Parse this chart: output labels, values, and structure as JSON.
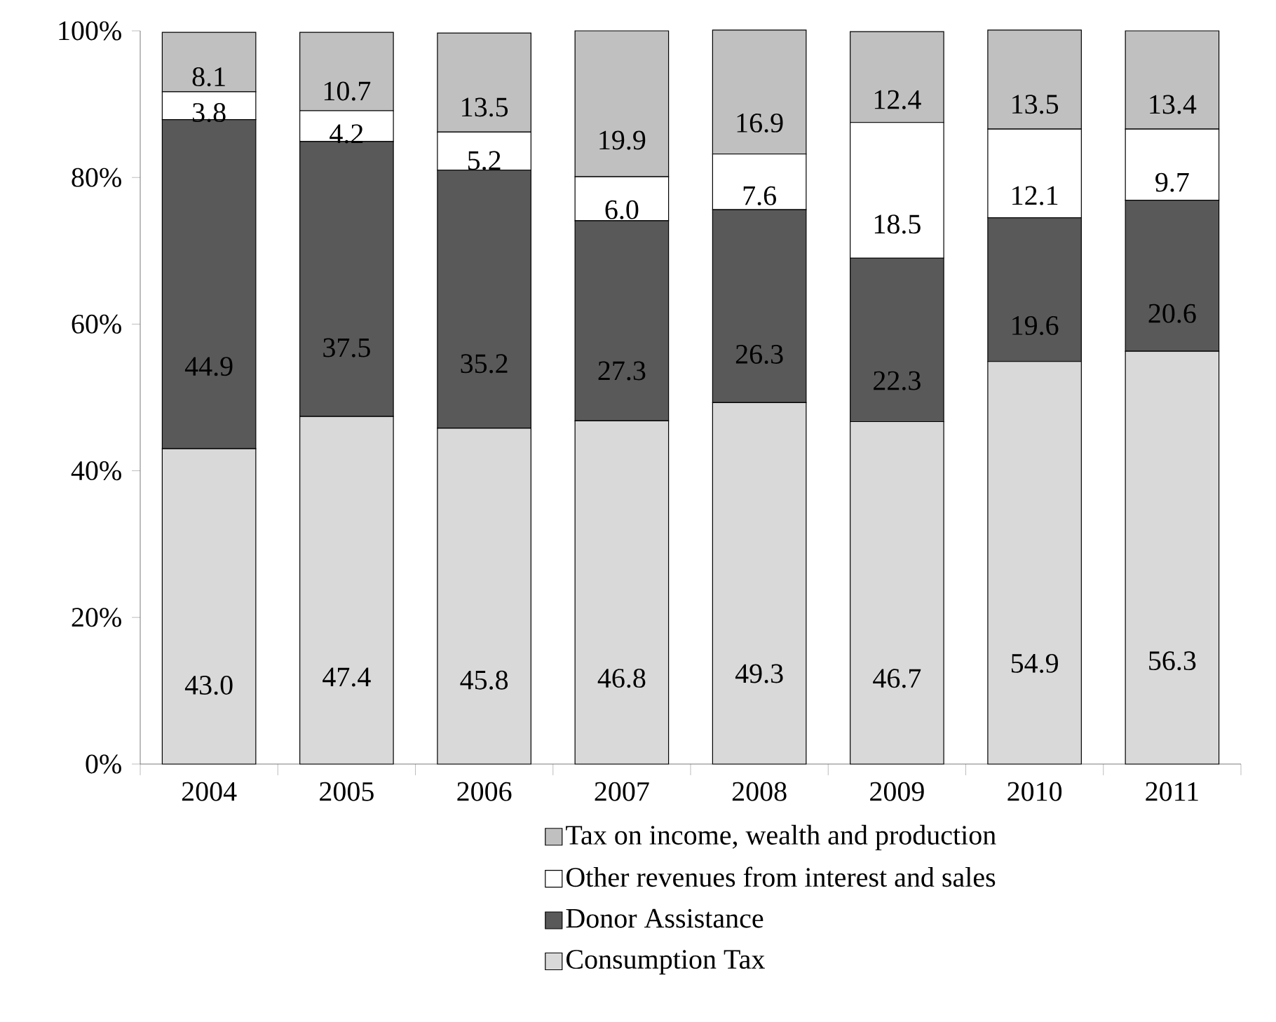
{
  "chart_data": {
    "type": "bar",
    "stacked": true,
    "legend": "bottom",
    "grid": false,
    "categories": [
      "2004",
      "2005",
      "2006",
      "2007",
      "2008",
      "2009",
      "2010",
      "2011"
    ],
    "ylim": [
      0,
      100
    ],
    "yticks": [
      {
        "value": 0,
        "label": "0%"
      },
      {
        "value": 20,
        "label": "20%"
      },
      {
        "value": 40,
        "label": "40%"
      },
      {
        "value": 60,
        "label": "60%"
      },
      {
        "value": 80,
        "label": "80%"
      },
      {
        "value": 100,
        "label": "100%"
      }
    ],
    "series": [
      {
        "name": "Consumption Tax",
        "color": "#d9d9d9",
        "values": [
          43.0,
          47.4,
          45.8,
          46.8,
          49.3,
          46.7,
          54.9,
          56.3
        ],
        "value_labels": [
          "43.0",
          "47.4",
          "45.8",
          "46.8",
          "49.3",
          "46.7",
          "54.9",
          "56.3"
        ]
      },
      {
        "name": "Donor Assistance",
        "color": "#595959",
        "values": [
          44.9,
          37.5,
          35.2,
          27.3,
          26.3,
          22.3,
          19.6,
          20.6
        ],
        "value_labels": [
          "44.9",
          "37.5",
          "35.2",
          "27.3",
          "26.3",
          "22.3",
          "19.6",
          "20.6"
        ]
      },
      {
        "name": "Other revenues from interest and sales",
        "color": "#ffffff",
        "values": [
          3.8,
          4.2,
          5.2,
          6.0,
          7.6,
          18.5,
          12.1,
          9.7
        ],
        "value_labels": [
          "3.8",
          "4.2",
          "5.2",
          "6.0",
          "7.6",
          "18.5",
          "12.1",
          "9.7"
        ]
      },
      {
        "name": "Tax on income, wealth and production",
        "color": "#c0c0c0",
        "values": [
          8.1,
          10.7,
          13.5,
          19.9,
          16.9,
          12.4,
          13.5,
          13.4
        ],
        "value_labels": [
          "8.1",
          "10.7",
          "13.5",
          "19.9",
          "16.9",
          "12.4",
          "13.5",
          "13.4"
        ]
      }
    ]
  }
}
